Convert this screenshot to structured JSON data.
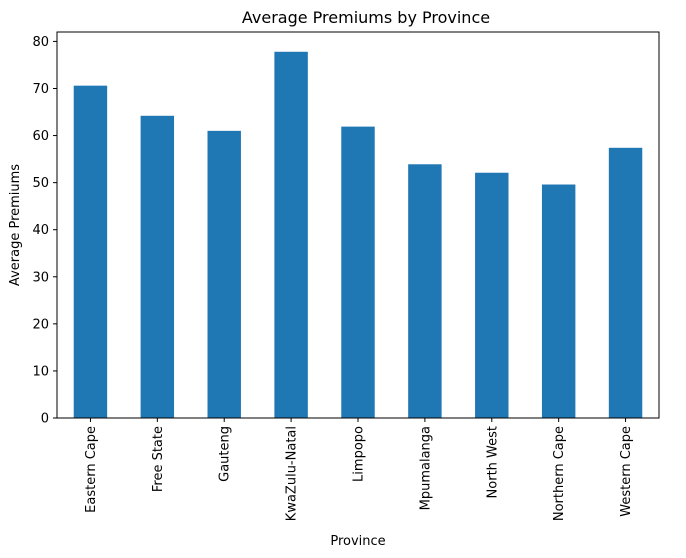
{
  "chart_data": {
    "type": "bar",
    "title": "Average Premiums by Province",
    "xlabel": "Province",
    "ylabel": "Average Premiums",
    "categories": [
      "Eastern Cape",
      "Free State",
      "Gauteng",
      "KwaZulu-Natal",
      "Limpopo",
      "Mpumalanga",
      "North West",
      "Northern Cape",
      "Western Cape"
    ],
    "values": [
      70.6,
      64.2,
      61.0,
      77.8,
      61.9,
      53.9,
      52.1,
      49.6,
      57.4
    ],
    "yticks": [
      0,
      10,
      20,
      30,
      40,
      50,
      60,
      70,
      80
    ],
    "ylim": [
      0,
      82
    ],
    "grid": false,
    "legend": "none",
    "bar_color": "#1f77b4"
  }
}
